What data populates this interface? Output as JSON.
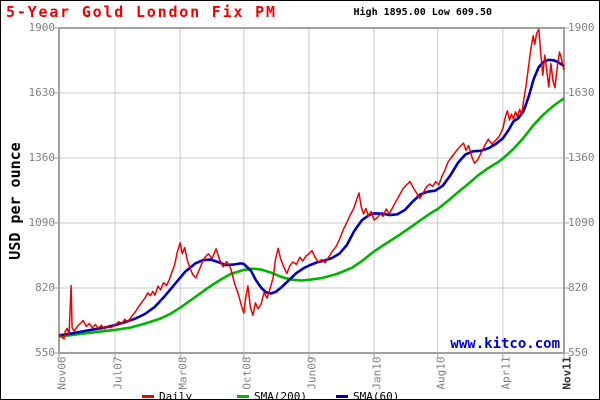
{
  "header": {
    "title": "5-Year Gold London Fix PM",
    "high_low": "High 1895.00 Low 609.50"
  },
  "watermark": {
    "text": "www.kitco.com",
    "color": "#0000cc"
  },
  "y_axis_title": "USD per ounce",
  "legend": {
    "items": [
      {
        "label": "Daily",
        "color": "#ee0000"
      },
      {
        "label": "SMA(200)",
        "color": "#00b400"
      },
      {
        "label": "SMA(60)",
        "color": "#0000bb"
      }
    ]
  },
  "colors": {
    "title": "#ee0000",
    "high_low_text": "#000000",
    "grid": "#c9c9c9",
    "frame": "#a0a0a0",
    "tick_mark": "#a0a0a0",
    "tick_text": "#808080",
    "background": "#ffffff"
  },
  "chart_data": {
    "type": "line",
    "title": "5-Year Gold London Fix PM",
    "ylabel": "USD per ounce",
    "ylim": [
      550,
      1900
    ],
    "y_ticks": [
      550,
      820,
      1090,
      1360,
      1630,
      1900
    ],
    "high": 1895.0,
    "low": 609.5,
    "x_range": "Nov 2006 to Nov 2011 (x given as fraction of span)",
    "x_ticks": [
      {
        "label": "Nov06",
        "f": 0.0
      },
      {
        "label": "Jul07",
        "f": 0.111
      },
      {
        "label": "Mar08",
        "f": 0.24
      },
      {
        "label": "Oct08",
        "f": 0.366
      },
      {
        "label": "Jun09",
        "f": 0.495
      },
      {
        "label": "Jan10",
        "f": 0.624
      },
      {
        "label": "Aug10",
        "f": 0.75
      },
      {
        "label": "Apr11",
        "f": 0.879
      },
      {
        "label": "Nov11",
        "f": 1.0
      }
    ],
    "series": [
      {
        "name": "Daily",
        "color": "#ee0000",
        "width": 1.5,
        "points": [
          [
            0.0,
            629
          ],
          [
            0.004,
            622
          ],
          [
            0.008,
            612
          ],
          [
            0.01,
            609.5
          ],
          [
            0.012,
            638
          ],
          [
            0.016,
            652
          ],
          [
            0.02,
            628
          ],
          [
            0.024,
            830
          ],
          [
            0.026,
            655
          ],
          [
            0.03,
            640
          ],
          [
            0.036,
            660
          ],
          [
            0.042,
            672
          ],
          [
            0.048,
            685
          ],
          [
            0.054,
            660
          ],
          [
            0.06,
            672
          ],
          [
            0.066,
            655
          ],
          [
            0.072,
            668
          ],
          [
            0.078,
            652
          ],
          [
            0.084,
            665
          ],
          [
            0.09,
            650
          ],
          [
            0.096,
            662
          ],
          [
            0.102,
            655
          ],
          [
            0.111,
            665
          ],
          [
            0.118,
            680
          ],
          [
            0.124,
            670
          ],
          [
            0.13,
            690
          ],
          [
            0.136,
            678
          ],
          [
            0.143,
            700
          ],
          [
            0.15,
            718
          ],
          [
            0.157,
            740
          ],
          [
            0.163,
            758
          ],
          [
            0.17,
            778
          ],
          [
            0.176,
            800
          ],
          [
            0.181,
            788
          ],
          [
            0.186,
            806
          ],
          [
            0.19,
            790
          ],
          [
            0.196,
            828
          ],
          [
            0.201,
            812
          ],
          [
            0.207,
            842
          ],
          [
            0.213,
            830
          ],
          [
            0.219,
            858
          ],
          [
            0.224,
            888
          ],
          [
            0.229,
            915
          ],
          [
            0.234,
            968
          ],
          [
            0.24,
            1008
          ],
          [
            0.244,
            962
          ],
          [
            0.249,
            988
          ],
          [
            0.254,
            935
          ],
          [
            0.259,
            905
          ],
          [
            0.265,
            875
          ],
          [
            0.271,
            862
          ],
          [
            0.277,
            892
          ],
          [
            0.283,
            922
          ],
          [
            0.289,
            948
          ],
          [
            0.296,
            962
          ],
          [
            0.303,
            942
          ],
          [
            0.311,
            983
          ],
          [
            0.318,
            938
          ],
          [
            0.325,
            908
          ],
          [
            0.332,
            930
          ],
          [
            0.34,
            902
          ],
          [
            0.348,
            838
          ],
          [
            0.356,
            788
          ],
          [
            0.361,
            748
          ],
          [
            0.366,
            715
          ],
          [
            0.37,
            782
          ],
          [
            0.374,
            829
          ],
          [
            0.379,
            740
          ],
          [
            0.384,
            706
          ],
          [
            0.389,
            758
          ],
          [
            0.394,
            734
          ],
          [
            0.4,
            752
          ],
          [
            0.406,
            800
          ],
          [
            0.412,
            778
          ],
          [
            0.418,
            818
          ],
          [
            0.424,
            862
          ],
          [
            0.429,
            942
          ],
          [
            0.434,
            985
          ],
          [
            0.439,
            940
          ],
          [
            0.445,
            908
          ],
          [
            0.451,
            880
          ],
          [
            0.457,
            912
          ],
          [
            0.463,
            928
          ],
          [
            0.47,
            918
          ],
          [
            0.477,
            948
          ],
          [
            0.483,
            932
          ],
          [
            0.489,
            952
          ],
          [
            0.495,
            962
          ],
          [
            0.501,
            975
          ],
          [
            0.507,
            948
          ],
          [
            0.513,
            928
          ],
          [
            0.52,
            938
          ],
          [
            0.527,
            925
          ],
          [
            0.534,
            948
          ],
          [
            0.541,
            972
          ],
          [
            0.548,
            990
          ],
          [
            0.555,
            1020
          ],
          [
            0.563,
            1062
          ],
          [
            0.57,
            1092
          ],
          [
            0.577,
            1125
          ],
          [
            0.584,
            1152
          ],
          [
            0.59,
            1190
          ],
          [
            0.594,
            1215
          ],
          [
            0.598,
            1162
          ],
          [
            0.603,
            1128
          ],
          [
            0.608,
            1150
          ],
          [
            0.613,
            1118
          ],
          [
            0.618,
            1138
          ],
          [
            0.624,
            1102
          ],
          [
            0.63,
            1112
          ],
          [
            0.636,
            1128
          ],
          [
            0.642,
            1118
          ],
          [
            0.648,
            1148
          ],
          [
            0.654,
            1128
          ],
          [
            0.66,
            1152
          ],
          [
            0.667,
            1178
          ],
          [
            0.674,
            1205
          ],
          [
            0.681,
            1232
          ],
          [
            0.688,
            1248
          ],
          [
            0.695,
            1262
          ],
          [
            0.701,
            1238
          ],
          [
            0.708,
            1215
          ],
          [
            0.714,
            1192
          ],
          [
            0.72,
            1210
          ],
          [
            0.727,
            1238
          ],
          [
            0.734,
            1252
          ],
          [
            0.74,
            1242
          ],
          [
            0.746,
            1262
          ],
          [
            0.752,
            1248
          ],
          [
            0.758,
            1282
          ],
          [
            0.764,
            1308
          ],
          [
            0.77,
            1342
          ],
          [
            0.777,
            1362
          ],
          [
            0.784,
            1382
          ],
          [
            0.79,
            1398
          ],
          [
            0.796,
            1412
          ],
          [
            0.801,
            1422
          ],
          [
            0.806,
            1392
          ],
          [
            0.811,
            1412
          ],
          [
            0.817,
            1368
          ],
          [
            0.823,
            1338
          ],
          [
            0.829,
            1352
          ],
          [
            0.836,
            1382
          ],
          [
            0.843,
            1412
          ],
          [
            0.85,
            1438
          ],
          [
            0.857,
            1418
          ],
          [
            0.864,
            1432
          ],
          [
            0.871,
            1448
          ],
          [
            0.879,
            1482
          ],
          [
            0.884,
            1532
          ],
          [
            0.888,
            1556
          ],
          [
            0.892,
            1518
          ],
          [
            0.896,
            1542
          ],
          [
            0.9,
            1522
          ],
          [
            0.904,
            1552
          ],
          [
            0.908,
            1532
          ],
          [
            0.912,
            1562
          ],
          [
            0.916,
            1542
          ],
          [
            0.92,
            1598
          ],
          [
            0.925,
            1662
          ],
          [
            0.93,
            1745
          ],
          [
            0.935,
            1822
          ],
          [
            0.939,
            1868
          ],
          [
            0.942,
            1832
          ],
          [
            0.946,
            1878
          ],
          [
            0.95,
            1895
          ],
          [
            0.954,
            1792
          ],
          [
            0.958,
            1704
          ],
          [
            0.962,
            1787
          ],
          [
            0.966,
            1722
          ],
          [
            0.97,
            1655
          ],
          [
            0.974,
            1752
          ],
          [
            0.978,
            1682
          ],
          [
            0.982,
            1652
          ],
          [
            0.987,
            1742
          ],
          [
            0.991,
            1800
          ],
          [
            0.995,
            1772
          ],
          [
            1.0,
            1726
          ]
        ]
      },
      {
        "name": "SMA(200)",
        "color": "#00b400",
        "width": 2.6,
        "points": [
          [
            0.0,
            618
          ],
          [
            0.03,
            626
          ],
          [
            0.06,
            634
          ],
          [
            0.09,
            641
          ],
          [
            0.111,
            646
          ],
          [
            0.14,
            655
          ],
          [
            0.17,
            672
          ],
          [
            0.2,
            692
          ],
          [
            0.22,
            712
          ],
          [
            0.24,
            738
          ],
          [
            0.26,
            768
          ],
          [
            0.28,
            798
          ],
          [
            0.3,
            828
          ],
          [
            0.32,
            855
          ],
          [
            0.34,
            878
          ],
          [
            0.366,
            895
          ],
          [
            0.385,
            900
          ],
          [
            0.4,
            897
          ],
          [
            0.42,
            884
          ],
          [
            0.44,
            866
          ],
          [
            0.46,
            855
          ],
          [
            0.48,
            851
          ],
          [
            0.495,
            854
          ],
          [
            0.52,
            861
          ],
          [
            0.55,
            878
          ],
          [
            0.58,
            904
          ],
          [
            0.6,
            932
          ],
          [
            0.624,
            972
          ],
          [
            0.65,
            1008
          ],
          [
            0.675,
            1042
          ],
          [
            0.7,
            1078
          ],
          [
            0.72,
            1108
          ],
          [
            0.74,
            1136
          ],
          [
            0.75,
            1148
          ],
          [
            0.77,
            1182
          ],
          [
            0.79,
            1218
          ],
          [
            0.81,
            1252
          ],
          [
            0.83,
            1288
          ],
          [
            0.85,
            1318
          ],
          [
            0.87,
            1344
          ],
          [
            0.879,
            1358
          ],
          [
            0.9,
            1398
          ],
          [
            0.92,
            1444
          ],
          [
            0.94,
            1498
          ],
          [
            0.96,
            1542
          ],
          [
            0.98,
            1578
          ],
          [
            1.0,
            1608
          ]
        ]
      },
      {
        "name": "SMA(60)",
        "color": "#0000bb",
        "width": 2.6,
        "points": [
          [
            0.0,
            623
          ],
          [
            0.03,
            633
          ],
          [
            0.06,
            645
          ],
          [
            0.09,
            655
          ],
          [
            0.111,
            666
          ],
          [
            0.13,
            678
          ],
          [
            0.15,
            692
          ],
          [
            0.17,
            712
          ],
          [
            0.19,
            742
          ],
          [
            0.21,
            788
          ],
          [
            0.23,
            838
          ],
          [
            0.25,
            888
          ],
          [
            0.27,
            922
          ],
          [
            0.285,
            936
          ],
          [
            0.3,
            938
          ],
          [
            0.315,
            928
          ],
          [
            0.33,
            915
          ],
          [
            0.345,
            917
          ],
          [
            0.36,
            922
          ],
          [
            0.366,
            920
          ],
          [
            0.38,
            892
          ],
          [
            0.39,
            852
          ],
          [
            0.4,
            822
          ],
          [
            0.41,
            802
          ],
          [
            0.42,
            797
          ],
          [
            0.43,
            805
          ],
          [
            0.44,
            822
          ],
          [
            0.455,
            852
          ],
          [
            0.47,
            882
          ],
          [
            0.485,
            903
          ],
          [
            0.495,
            913
          ],
          [
            0.51,
            926
          ],
          [
            0.525,
            934
          ],
          [
            0.54,
            944
          ],
          [
            0.555,
            962
          ],
          [
            0.57,
            998
          ],
          [
            0.585,
            1058
          ],
          [
            0.6,
            1102
          ],
          [
            0.615,
            1124
          ],
          [
            0.624,
            1130
          ],
          [
            0.64,
            1129
          ],
          [
            0.655,
            1123
          ],
          [
            0.67,
            1126
          ],
          [
            0.685,
            1144
          ],
          [
            0.7,
            1178
          ],
          [
            0.715,
            1208
          ],
          [
            0.73,
            1220
          ],
          [
            0.745,
            1224
          ],
          [
            0.76,
            1245
          ],
          [
            0.775,
            1288
          ],
          [
            0.79,
            1340
          ],
          [
            0.805,
            1375
          ],
          [
            0.82,
            1388
          ],
          [
            0.835,
            1390
          ],
          [
            0.85,
            1400
          ],
          [
            0.865,
            1418
          ],
          [
            0.879,
            1442
          ],
          [
            0.89,
            1475
          ],
          [
            0.9,
            1512
          ],
          [
            0.91,
            1526
          ],
          [
            0.92,
            1555
          ],
          [
            0.93,
            1615
          ],
          [
            0.94,
            1688
          ],
          [
            0.95,
            1738
          ],
          [
            0.96,
            1760
          ],
          [
            0.97,
            1768
          ],
          [
            0.98,
            1766
          ],
          [
            0.99,
            1756
          ],
          [
            1.0,
            1742
          ]
        ]
      }
    ]
  }
}
